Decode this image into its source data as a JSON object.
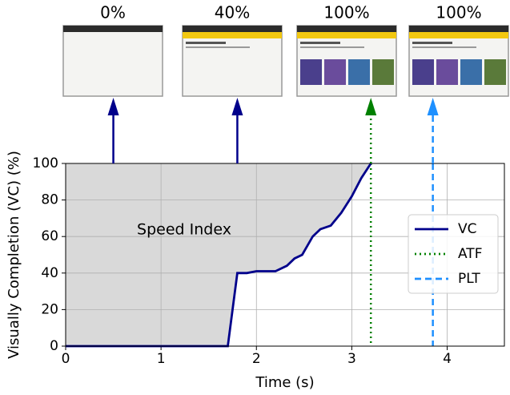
{
  "chart_data": {
    "type": "line",
    "xlabel": "Time (s)",
    "ylabel": "Visually Completion (VC) (%)",
    "annotation": "Speed Index",
    "x": [
      0,
      1.7,
      1.8,
      1.9,
      2.0,
      2.2,
      2.32,
      2.4,
      2.48,
      2.59,
      2.67,
      2.78,
      2.89,
      3.0,
      3.1,
      3.2
    ],
    "series": [
      {
        "name": "VC",
        "color": "#00008b",
        "values": [
          0,
          0,
          40,
          40,
          41,
          41,
          44,
          48,
          50,
          60,
          64,
          66,
          73,
          82,
          92,
          100
        ]
      }
    ],
    "vlines": [
      {
        "name": "ATF",
        "color": "#008000",
        "x": 3.2,
        "style": "dotted"
      },
      {
        "name": "PLT",
        "color": "#1e90ff",
        "x": 3.85,
        "style": "dashed"
      }
    ],
    "frames": [
      {
        "time": 0.5,
        "value": 0,
        "label": "0%",
        "color": "#00008b",
        "style": "solid"
      },
      {
        "time": 1.8,
        "value": 40,
        "label": "40%",
        "color": "#00008b",
        "style": "solid"
      },
      {
        "time": 3.2,
        "value": 100,
        "label": "100%",
        "color": "#008000",
        "style": "dotted"
      },
      {
        "time": 3.85,
        "value": 100,
        "label": "100%",
        "color": "#1e90ff",
        "style": "dashed"
      }
    ],
    "xlim": [
      0,
      4.6
    ],
    "ylim": [
      0,
      100
    ],
    "xticks": [
      0,
      1,
      2,
      3,
      4
    ],
    "yticks": [
      0,
      20,
      40,
      60,
      80,
      100
    ],
    "grid": true,
    "legend": "right"
  }
}
